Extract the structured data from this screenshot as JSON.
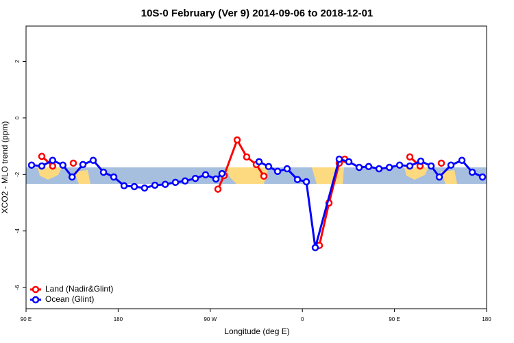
{
  "chart_data": {
    "type": "line",
    "title": "10S-0 February (Ver 9)   2014-09-06 to 2018-12-01",
    "x_label": "Longitude (deg E)",
    "y_label": "XCO2 - MLO trend (ppm)",
    "xlim": [
      90,
      540
    ],
    "ylim": [
      -6.75,
      3.25
    ],
    "xticks": [
      {
        "value": 90,
        "label": "90 E"
      },
      180,
      {
        "value": 270,
        "label": "90 W"
      },
      {
        "value": 360,
        "label": "0"
      },
      {
        "value": 450,
        "label": "90 E"
      },
      {
        "value": 540,
        "label": "180"
      }
    ],
    "yticks": [
      -6,
      -4,
      -2,
      0,
      2
    ],
    "legend": "bottom-left",
    "series": [
      {
        "name": "Land (Nadir&Glint)",
        "color": "#ff0000",
        "x": [
          105.4,
          116,
          null,
          136.2,
          null,
          277.5,
          283.5,
          296.3,
          305.6,
          315,
          322.4,
          null,
          376.6,
          386,
          396,
          401.4,
          null,
          465,
          475,
          null,
          495.8
        ],
        "values": [
          -1.36,
          -1.7,
          null,
          -1.6,
          null,
          -2.52,
          -2.04,
          -0.78,
          -1.38,
          -1.65,
          -2.06,
          null,
          -4.51,
          -3.01,
          -1.6,
          -1.46,
          null,
          -1.38,
          -1.7,
          null,
          -1.6
        ]
      },
      {
        "name": "Ocean (Glint)",
        "color": "#0000ff",
        "x": [
          95.4,
          105.4,
          116,
          126,
          135,
          145.6,
          155.6,
          165.7,
          175.7,
          185.8,
          195.8,
          205.8,
          215.9,
          226,
          236,
          245.4,
          255.4,
          265.4,
          275.5,
          281.5,
          null,
          317.7,
          327,
          335.8,
          345.1,
          355.2,
          363.9,
          372.6,
          396,
          405.4,
          415.5,
          424.8,
          434.9,
          445,
          455,
          465,
          475.7,
          485.8,
          493.8,
          505.2,
          515.9,
          526,
          536
        ],
        "values": [
          -1.67,
          -1.7,
          -1.5,
          -1.67,
          -2.09,
          -1.65,
          -1.5,
          -1.92,
          -2.09,
          -2.4,
          -2.43,
          -2.48,
          -2.38,
          -2.35,
          -2.28,
          -2.23,
          -2.14,
          -2.01,
          -2.16,
          -1.97,
          null,
          -1.55,
          -1.72,
          -1.89,
          -1.8,
          -2.18,
          -2.26,
          -4.59,
          -1.46,
          -1.55,
          -1.75,
          -1.72,
          -1.8,
          -1.75,
          -1.67,
          -1.7,
          -1.53,
          -1.7,
          -2.09,
          -1.67,
          -1.5,
          -1.92,
          -2.09
        ]
      }
    ]
  }
}
